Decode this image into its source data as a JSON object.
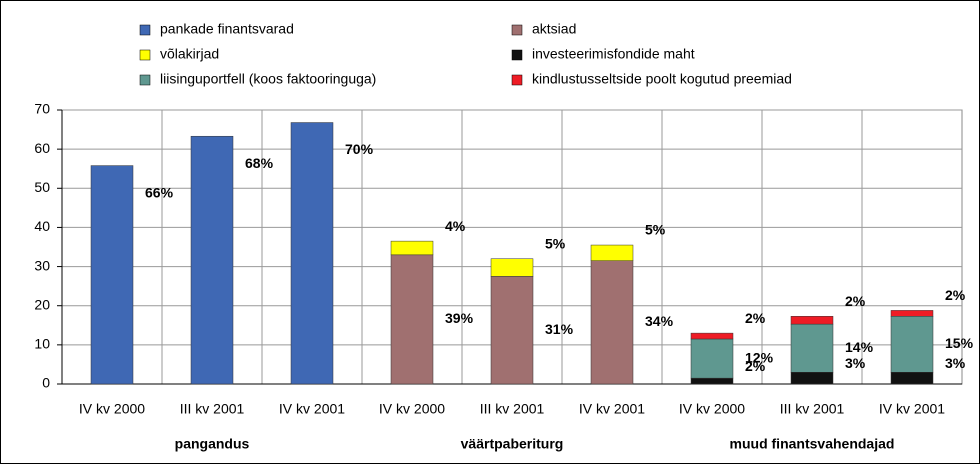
{
  "chart_data": {
    "type": "stacked-bar",
    "categories": [
      "IV kv 2000",
      "III kv 2001",
      "IV kv 2001",
      "IV kv 2000",
      "III kv 2001",
      "IV kv 2001",
      "IV kv 2000",
      "III kv 2001",
      "IV kv 2001"
    ],
    "group_labels": [
      "pangandus",
      "väärtpaberiturg",
      "muud finantsvahendajad"
    ],
    "series": [
      {
        "name": "pankade finantsvarad",
        "color": "#3f68b4",
        "values": [
          55.8,
          63.3,
          66.8,
          null,
          null,
          null,
          null,
          null,
          null
        ],
        "shares": [
          "66%",
          "68%",
          "70%",
          null,
          null,
          null,
          null,
          null,
          null
        ]
      },
      {
        "name": "aktsiad",
        "color": "#a07070",
        "values": [
          null,
          null,
          null,
          33,
          27.5,
          31.5,
          null,
          null,
          null
        ],
        "shares": [
          null,
          null,
          null,
          "39%",
          "31%",
          "34%",
          null,
          null,
          null
        ]
      },
      {
        "name": "võlakirjad",
        "color": "#ffff00",
        "values": [
          null,
          null,
          null,
          3.5,
          4.5,
          4,
          null,
          null,
          null
        ],
        "shares": [
          null,
          null,
          null,
          "4%",
          "5%",
          "5%",
          null,
          null,
          null
        ]
      },
      {
        "name": "investeerimisfondide maht",
        "color": "#111111",
        "values": [
          null,
          null,
          null,
          null,
          null,
          null,
          1.5,
          3,
          3
        ],
        "shares": [
          null,
          null,
          null,
          null,
          null,
          null,
          "2%",
          "3%",
          "3%"
        ]
      },
      {
        "name": "liisinguportfell (koos faktooringuga)",
        "color": "#5f9890",
        "values": [
          null,
          null,
          null,
          null,
          null,
          null,
          10,
          12.3,
          14.3
        ],
        "shares": [
          null,
          null,
          null,
          null,
          null,
          null,
          "12%",
          "14%",
          "15%"
        ]
      },
      {
        "name": "kindlustusseltside poolt kogutud preemiad",
        "color": "#ee1c25",
        "values": [
          null,
          null,
          null,
          null,
          null,
          null,
          1.5,
          2,
          1.5
        ],
        "shares": [
          null,
          null,
          null,
          null,
          null,
          null,
          "2%",
          "2%",
          "2%"
        ]
      }
    ],
    "ylim": [
      0,
      70
    ],
    "yticks": [
      0,
      10,
      20,
      30,
      40,
      50,
      60,
      70
    ],
    "grid": true
  }
}
